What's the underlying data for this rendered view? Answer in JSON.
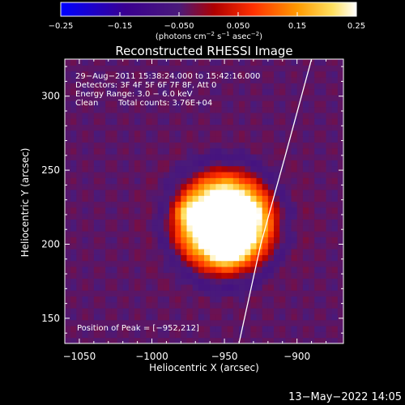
{
  "chart_data": {
    "type": "heatmap",
    "title": "Reconstructed RHESSI Image",
    "xlabel": "Heliocentric X (arcsec)",
    "ylabel": "Heliocentric Y (arcsec)",
    "xlim": [
      -1060,
      -868
    ],
    "ylim": [
      133,
      325
    ],
    "x_ticks": [
      -1050,
      -1000,
      -950,
      -900
    ],
    "y_ticks": [
      150,
      200,
      250,
      300
    ],
    "x_tick_labels": [
      "−1050",
      "−1000",
      "−950",
      "−900"
    ],
    "y_tick_labels": [
      "150",
      "200",
      "250",
      "300"
    ],
    "colorbar": {
      "range": [
        -0.25,
        0.25
      ],
      "ticks": [
        -0.25,
        -0.15,
        -0.05,
        0.05,
        0.15,
        0.25
      ],
      "tick_labels": [
        "−0.25",
        "−0.15",
        "−0.050",
        "0.050",
        "0.15",
        "0.25"
      ],
      "unit_main": "(photons cm",
      "unit_sup1": "−2",
      "unit_mid1": " s",
      "unit_sup2": "−1",
      "unit_mid2": " asec",
      "unit_sup3": "−2",
      "unit_end": ")",
      "colors": [
        "#0000ff",
        "#3a0080",
        "#4a1a7a",
        "#ff1800",
        "#ff8c00",
        "#ffffff"
      ]
    },
    "annotations": {
      "time_range": "29−Aug−2011 15:38:24.000 to 15:42:16.000",
      "detectors": "Detectors: 3F 4F 5F 6F 7F 8F, Att 0",
      "energy_range": "Energy Range: 3.0 − 6.0 keV",
      "clean_label": "Clean",
      "total_counts": "Total counts: 3.76E+04",
      "peak": "Position of Peak = [−952,212]"
    },
    "peak": {
      "x": -952,
      "y": 212
    },
    "limb": [
      [
        -940,
        133
      ],
      [
        -925,
        200
      ],
      [
        -908,
        260
      ],
      [
        -890,
        325
      ]
    ],
    "sources": [
      {
        "x": -950,
        "y": 215,
        "sx": 20,
        "sy": 19,
        "amp": 0.55
      },
      {
        "x": -952,
        "y": 212,
        "sx": 5,
        "sy": 11,
        "amp": 0.42
      },
      {
        "x": -938,
        "y": 221,
        "sx": 6,
        "sy": 5,
        "amp": 0.28
      },
      {
        "x": -945,
        "y": 198,
        "sx": 6,
        "sy": 5,
        "amp": 0.22
      },
      {
        "x": -975,
        "y": 222,
        "sx": 5,
        "sy": 5,
        "amp": 0.08
      }
    ],
    "background_level": -0.04,
    "ring": {
      "x": -950,
      "y": 215,
      "radius": 42,
      "width": 8,
      "depth": -0.07
    }
  },
  "footer": {
    "timestamp": "13−May−2022 14:05"
  }
}
